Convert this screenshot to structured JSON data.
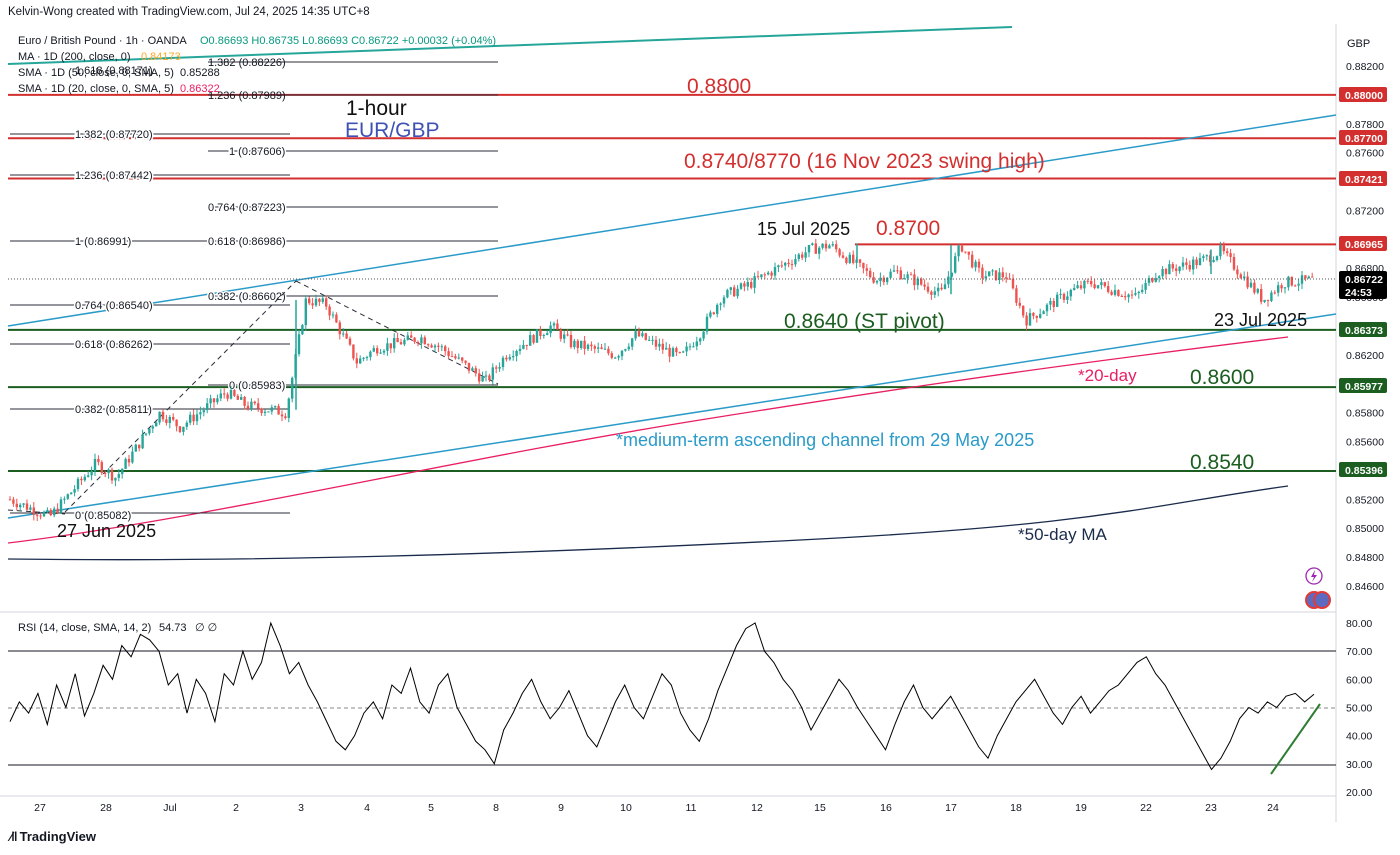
{
  "credit": "Kelvin-Wong created with TradingView.com, Jul 24, 2025 14:35 UTC+8",
  "brand": "TradingView",
  "currency": "GBP",
  "legend": {
    "symbol": "Euro / British Pound · 1h · OANDA",
    "ohlc": "O0.86693 H0.86735 L0.86693 C0.86722 +0.00032 (+0.04%)",
    "ma200_label": "MA · 1D (200, close, 0)",
    "ma200_value": "0.84173",
    "sma50_label": "SMA · 1D (50, close, 0, SMA, 5)",
    "sma50_value": "0.85288",
    "sma20_label": "SMA · 1D (20, close, 0, SMA, 5)",
    "sma20_value": "0.86322",
    "rsi_label": "RSI (14, close, SMA, 14, 2)",
    "rsi_value": "54.73",
    "rsi_extra": "∅ ∅"
  },
  "annotations": {
    "timeframe": "1-hour",
    "pair": "EUR/GBP",
    "level_0880": "0.8800",
    "level_0874": "0.8740/8770 (16 Nov 2023 swing high)",
    "swing_date": "15 Jul 2025",
    "level_0870": "0.8700",
    "pivot": "0.8640 (ST pivot)",
    "pivot_date": "23 Jul 2025",
    "ma20_note": "*20-day",
    "level_0860": "0.8600",
    "channel_note": "*medium-term ascending channel from 29 May 2025",
    "level_0854": "0.8540",
    "low_date": "27 Jun 2025",
    "ma50_note": "*50-day MA"
  },
  "fib_labels": [
    {
      "text": "1.382 (0.88226)"
    },
    {
      "text": "1.618 (0.88171)"
    },
    {
      "text": "1.236 (0.87989)"
    },
    {
      "text": "1.382 (0.87720)"
    },
    {
      "text": "1 (0.87606)"
    },
    {
      "text": "1.236 (0.87442)"
    },
    {
      "text": "0.764 (0.87223)"
    },
    {
      "text": "1 (0.86991)"
    },
    {
      "text": "0.618 (0.86986)"
    },
    {
      "text": "0.382 (0.86602)"
    },
    {
      "text": "0.764 (0.86540)"
    },
    {
      "text": "0.618 (0.86262)"
    },
    {
      "text": "0 (0.85983)"
    },
    {
      "text": "0.382 (0.85811)"
    },
    {
      "text": "0 (0.85082)"
    }
  ],
  "price_tags": [
    {
      "text": "0.88000",
      "color": "#d32f2f"
    },
    {
      "text": "0.87700",
      "color": "#d32f2f"
    },
    {
      "text": "0.87421",
      "color": "#d32f2f"
    },
    {
      "text": "0.86965",
      "color": "#d32f2f"
    },
    {
      "text": "0.86722",
      "color": "#000000"
    },
    {
      "text": "24:53",
      "color": "#000000"
    },
    {
      "text": "0.86373",
      "color": "#1b5e20"
    },
    {
      "text": "0.85977",
      "color": "#1b5e20"
    },
    {
      "text": "0.85396",
      "color": "#1b5e20"
    }
  ],
  "colors": {
    "up": "#26a69a",
    "down": "#ef5350",
    "resistance": "#d32f2f",
    "support": "#1b5e20",
    "channel": "#2a9bc9",
    "ma20": "#e91e63",
    "ma50": "#1a2b4c",
    "ma200": "#26a69a",
    "rsi": "#000000",
    "rsi_trend": "#2e7d32",
    "pair_text": "#3f51b5",
    "channel_text": "#2a9bc9"
  },
  "chart_data": {
    "type": "candlestick",
    "title": "Euro / British Pound · 1h · OANDA",
    "ylim": [
      0.8445,
      0.8835
    ],
    "y_ticks": [
      "0.88200",
      "0.88000",
      "0.87800",
      "0.87600",
      "0.87400",
      "0.87200",
      "0.87000",
      "0.86800",
      "0.86600",
      "0.86400",
      "0.86200",
      "0.86000",
      "0.85800",
      "0.85600",
      "0.85400",
      "0.85200",
      "0.85000",
      "0.84800",
      "0.84600"
    ],
    "x_tick_labels": [
      "27",
      "28",
      "Jul",
      "2",
      "3",
      "4",
      "5",
      "8",
      "9",
      "10",
      "11",
      "12",
      "15",
      "16",
      "17",
      "18",
      "19",
      "22",
      "23",
      "24"
    ],
    "price_path": [
      {
        "x": "27 Jun",
        "y": 0.852
      },
      {
        "x": "27 Jun",
        "y": 0.8508
      },
      {
        "x": "28 Jun",
        "y": 0.8545
      },
      {
        "x": "28 Jun",
        "y": 0.8535
      },
      {
        "x": "Jul 1",
        "y": 0.858
      },
      {
        "x": "Jul 1",
        "y": 0.857
      },
      {
        "x": "Jul 2",
        "y": 0.8594
      },
      {
        "x": "Jul 2",
        "y": 0.8585
      },
      {
        "x": "Jul 3",
        "y": 0.858
      },
      {
        "x": "Jul 3",
        "y": 0.8658
      },
      {
        "x": "Jul 3",
        "y": 0.8655
      },
      {
        "x": "Jul 4",
        "y": 0.8615
      },
      {
        "x": "Jul 4",
        "y": 0.8625
      },
      {
        "x": "Jul 5",
        "y": 0.8632
      },
      {
        "x": "Jul 5",
        "y": 0.8625
      },
      {
        "x": "Jul 8",
        "y": 0.8602
      },
      {
        "x": "Jul 8",
        "y": 0.862
      },
      {
        "x": "Jul 9",
        "y": 0.864
      },
      {
        "x": "Jul 9",
        "y": 0.8628
      },
      {
        "x": "Jul 10",
        "y": 0.862
      },
      {
        "x": "Jul 10",
        "y": 0.8634
      },
      {
        "x": "Jul 11",
        "y": 0.8618
      },
      {
        "x": "Jul 11",
        "y": 0.8636
      },
      {
        "x": "Jul 11",
        "y": 0.866
      },
      {
        "x": "Jul 12",
        "y": 0.8668
      },
      {
        "x": "Jul 15",
        "y": 0.8693
      },
      {
        "x": "Jul 15",
        "y": 0.8696
      },
      {
        "x": "Jul 16",
        "y": 0.8672
      },
      {
        "x": "Jul 16",
        "y": 0.8678
      },
      {
        "x": "Jul 17",
        "y": 0.8662
      },
      {
        "x": "Jul 17",
        "y": 0.8696
      },
      {
        "x": "Jul 17",
        "y": 0.8675
      },
      {
        "x": "Jul 18",
        "y": 0.8675
      },
      {
        "x": "Jul 18",
        "y": 0.8644
      },
      {
        "x": "Jul 19",
        "y": 0.8664
      },
      {
        "x": "Jul 19",
        "y": 0.867
      },
      {
        "x": "Jul 22",
        "y": 0.866
      },
      {
        "x": "Jul 22",
        "y": 0.8677
      },
      {
        "x": "Jul 23",
        "y": 0.8685
      },
      {
        "x": "Jul 23",
        "y": 0.8692
      },
      {
        "x": "Jul 23",
        "y": 0.8676
      },
      {
        "x": "Jul 24",
        "y": 0.8658
      },
      {
        "x": "Jul 24",
        "y": 0.867
      },
      {
        "x": "Jul 24",
        "y": 0.8672
      }
    ],
    "horizontal_levels": [
      {
        "label": "0.8800",
        "value": 0.88,
        "role": "resistance"
      },
      {
        "label": "0.8770",
        "value": 0.877,
        "role": "resistance"
      },
      {
        "label": "0.8742",
        "value": 0.87421,
        "role": "resistance"
      },
      {
        "label": "0.8700",
        "value": 0.86965,
        "role": "resistance"
      },
      {
        "label": "0.8640",
        "value": 0.86373,
        "role": "support"
      },
      {
        "label": "0.8600",
        "value": 0.85977,
        "role": "support"
      },
      {
        "label": "0.8540",
        "value": 0.85396,
        "role": "support"
      }
    ],
    "rsi": {
      "ylim": [
        18,
        82
      ],
      "y_ticks": [
        "80.00",
        "70.00",
        "60.00",
        "50.00",
        "40.00",
        "30.00",
        "20.00"
      ],
      "levels": [
        70,
        50,
        30
      ],
      "values": [
        45,
        52,
        48,
        55,
        44,
        58,
        50,
        62,
        47,
        55,
        65,
        60,
        72,
        68,
        76,
        74,
        70,
        58,
        62,
        48,
        60,
        55,
        45,
        62,
        58,
        70,
        60,
        66,
        80,
        72,
        62,
        66,
        58,
        52,
        45,
        38,
        35,
        40,
        48,
        52,
        46,
        58,
        55,
        64,
        52,
        48,
        58,
        62,
        50,
        44,
        38,
        35,
        30,
        42,
        48,
        55,
        60,
        52,
        46,
        50,
        56,
        48,
        40,
        36,
        44,
        52,
        58,
        50,
        46,
        54,
        62,
        58,
        48,
        42,
        38,
        46,
        56,
        64,
        72,
        78,
        80,
        70,
        66,
        60,
        56,
        50,
        42,
        48,
        54,
        60,
        56,
        50,
        45,
        40,
        35,
        44,
        52,
        58,
        50,
        46,
        50,
        54,
        48,
        42,
        36,
        32,
        40,
        46,
        52,
        56,
        60,
        54,
        48,
        44,
        50,
        54,
        48,
        52,
        56,
        58,
        62,
        66,
        68,
        62,
        58,
        52,
        46,
        40,
        34,
        28,
        32,
        38,
        46,
        50,
        48,
        52,
        50,
        54,
        55,
        52,
        54.73
      ]
    }
  }
}
